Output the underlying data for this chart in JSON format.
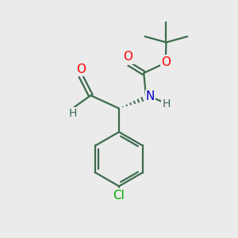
{
  "bg_color": "#ebebeb",
  "atom_colors": {
    "O": "#ff0000",
    "N": "#0000cc",
    "Cl": "#00aa00",
    "C": "#3d6b4e",
    "H": "#3d6b4e"
  },
  "bond_color": "#3d6b4e",
  "bond_width": 1.6,
  "figsize": [
    3.0,
    3.0
  ],
  "dpi": 100
}
